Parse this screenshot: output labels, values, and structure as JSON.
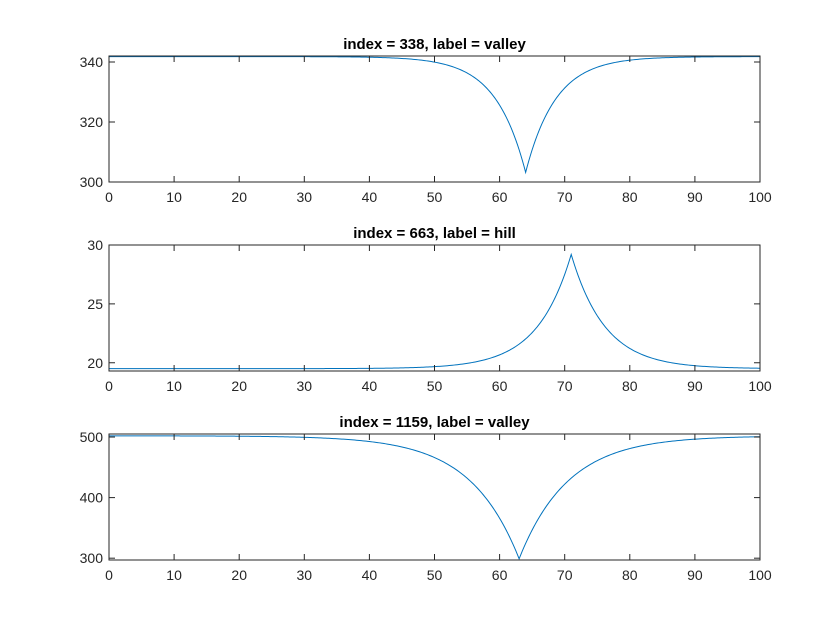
{
  "colors": {
    "series": "#0072BD",
    "axis": "#262626"
  },
  "chart_data": [
    {
      "type": "line",
      "title": "index = 338, label = valley",
      "xlabel": "",
      "ylabel": "",
      "xlim": [
        0,
        100
      ],
      "ylim": [
        300,
        342
      ],
      "xticks": [
        0,
        10,
        20,
        30,
        40,
        50,
        60,
        70,
        80,
        90,
        100
      ],
      "yticks": [
        300,
        320,
        340
      ],
      "grid": false,
      "series": [
        {
          "shape": "valley",
          "center": 64,
          "baseline": 341.8,
          "extreme": 303.2,
          "width": 4.6
        }
      ]
    },
    {
      "type": "line",
      "title": "index = 663, label = hill",
      "xlabel": "",
      "ylabel": "",
      "xlim": [
        0,
        100
      ],
      "ylim": [
        19.3,
        30
      ],
      "xticks": [
        0,
        10,
        20,
        30,
        40,
        50,
        60,
        70,
        80,
        90,
        100
      ],
      "yticks": [
        20,
        25,
        30
      ],
      "grid": false,
      "series": [
        {
          "shape": "hill",
          "center": 71,
          "baseline": 19.5,
          "extreme": 29.2,
          "width": 5.2
        }
      ]
    },
    {
      "type": "line",
      "title": "index = 1159, label = valley",
      "xlabel": "",
      "ylabel": "",
      "xlim": [
        0,
        100
      ],
      "ylim": [
        297,
        505
      ],
      "xticks": [
        0,
        10,
        20,
        30,
        40,
        50,
        60,
        70,
        80,
        90,
        100
      ],
      "yticks": [
        300,
        400,
        500
      ],
      "grid": false,
      "series": [
        {
          "shape": "valley",
          "center": 63,
          "baseline": 502,
          "extreme": 299,
          "width": 7.5
        }
      ]
    }
  ]
}
